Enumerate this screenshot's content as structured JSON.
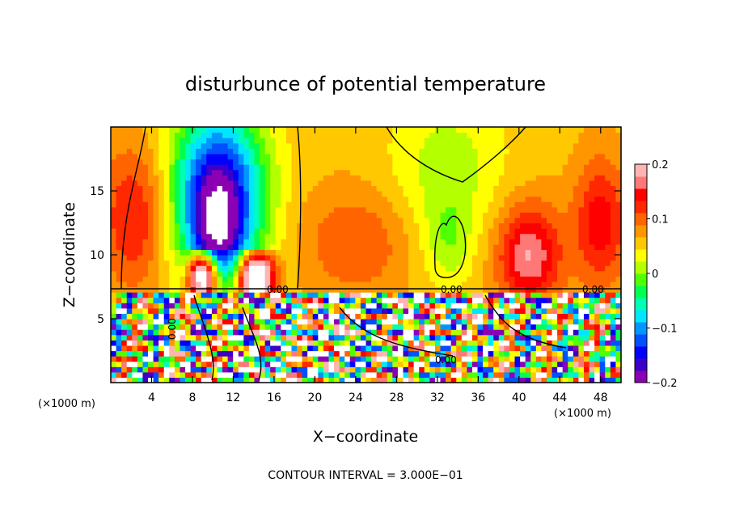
{
  "chart_data": {
    "type": "heatmap",
    "title": "disturbunce of potential temperature",
    "xlabel": "X−coordinate",
    "ylabel": "Z−coordinate",
    "x_unit_left": "(×1000 m)",
    "x_unit_right": "(×1000 m)",
    "xlim": [
      0,
      50
    ],
    "ylim": [
      0,
      20
    ],
    "x_ticks": [
      4,
      8,
      12,
      16,
      20,
      24,
      28,
      32,
      36,
      40,
      44,
      48
    ],
    "x_tick_labels": [
      "4",
      "8",
      "12",
      "16",
      "20",
      "24",
      "28",
      "32",
      "36",
      "40",
      "44",
      "48"
    ],
    "y_ticks": [
      5,
      10,
      15
    ],
    "y_tick_labels": [
      "5",
      "10",
      "15"
    ],
    "colorbar": {
      "range": [
        -0.2,
        0.2
      ],
      "ticks": [
        0.2,
        0.1,
        0,
        -0.1,
        -0.2
      ],
      "tick_labels": [
        "0.2",
        "0.1",
        "0",
        "−0.1",
        "−0.2"
      ],
      "colors": [
        "#8c00b4",
        "#3c00c8",
        "#0000ff",
        "#0050ff",
        "#0096ff",
        "#00e6ff",
        "#00ffb4",
        "#00ff50",
        "#50ff00",
        "#b4ff00",
        "#ffff00",
        "#ffc800",
        "#ff9600",
        "#ff6400",
        "#ff2800",
        "#ff0000",
        "#ff7878",
        "#ffb4b4"
      ]
    },
    "contour_labels": [
      "0.00",
      "0.00",
      "0.00",
      "0.00",
      "0.00"
    ],
    "footer": "CONTOUR INTERVAL = 3.000E−01"
  }
}
